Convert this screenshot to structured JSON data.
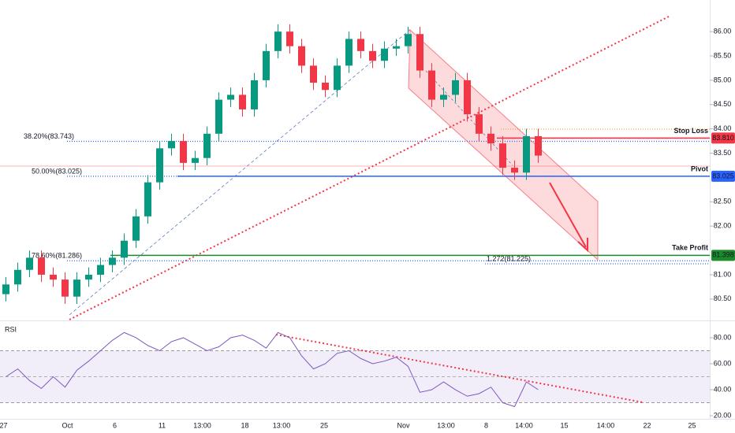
{
  "chart_data": [
    {
      "type": "candlestick",
      "x": [
        0,
        1,
        2,
        3,
        4,
        5,
        6,
        7,
        8,
        9,
        10,
        11,
        12,
        13,
        14,
        15,
        16,
        17,
        18,
        19,
        20,
        21,
        22,
        23,
        24,
        25,
        26,
        27,
        28,
        29,
        30,
        31,
        32,
        33,
        34,
        35,
        36,
        37,
        38,
        39,
        40,
        41,
        42,
        43,
        44,
        45
      ],
      "open": [
        80.6,
        80.8,
        81.1,
        81.35,
        81.0,
        80.9,
        80.55,
        80.9,
        81.0,
        81.2,
        81.35,
        81.7,
        82.2,
        82.9,
        83.6,
        83.75,
        83.3,
        83.4,
        83.9,
        84.6,
        84.7,
        84.4,
        85.0,
        85.6,
        86.0,
        85.7,
        85.3,
        84.95,
        84.8,
        85.3,
        85.85,
        85.6,
        85.4,
        85.65,
        85.7,
        85.95,
        85.2,
        84.6,
        84.7,
        85.0,
        84.3,
        83.9,
        83.7,
        83.2,
        83.1,
        83.85
      ],
      "high": [
        80.95,
        81.25,
        81.5,
        81.5,
        81.15,
        81.05,
        81.05,
        81.15,
        81.35,
        81.5,
        81.85,
        82.35,
        83.05,
        83.75,
        83.9,
        83.9,
        83.55,
        84.05,
        84.75,
        84.85,
        84.85,
        85.15,
        85.75,
        86.15,
        86.15,
        85.85,
        85.45,
        85.1,
        85.45,
        86.0,
        86.0,
        85.75,
        85.8,
        85.85,
        86.1,
        86.1,
        85.35,
        84.85,
        85.15,
        85.15,
        84.45,
        84.05,
        83.85,
        83.35,
        84.0,
        84.0
      ],
      "low": [
        80.45,
        80.65,
        80.95,
        80.85,
        80.75,
        80.4,
        80.4,
        80.75,
        80.85,
        81.05,
        81.2,
        81.55,
        82.05,
        82.75,
        83.45,
        83.15,
        83.15,
        83.25,
        83.75,
        84.45,
        84.25,
        84.25,
        84.85,
        85.45,
        85.55,
        85.15,
        84.8,
        84.65,
        84.65,
        85.15,
        85.45,
        85.25,
        85.25,
        85.5,
        85.55,
        85.05,
        84.45,
        84.45,
        84.55,
        84.15,
        83.75,
        83.55,
        83.05,
        82.95,
        82.95,
        83.3
      ],
      "close": [
        80.8,
        81.1,
        81.35,
        81.0,
        80.9,
        80.55,
        80.9,
        81.0,
        81.2,
        81.35,
        81.7,
        82.2,
        82.9,
        83.6,
        83.75,
        83.3,
        83.4,
        83.9,
        84.6,
        84.7,
        84.4,
        85.0,
        85.6,
        86.0,
        85.7,
        85.3,
        84.95,
        84.8,
        85.3,
        85.85,
        85.6,
        85.4,
        85.65,
        85.7,
        85.95,
        85.2,
        84.6,
        84.7,
        85.0,
        84.3,
        83.9,
        83.7,
        83.2,
        83.1,
        83.85,
        83.45
      ],
      "up_color": "#089981",
      "down_color": "#f23645",
      "xlim": [
        -0.5,
        59.5
      ],
      "xticks": [
        {
          "value": -0.2,
          "label": "27"
        },
        {
          "value": 5.2,
          "label": "Oct"
        },
        {
          "value": 9.2,
          "label": "6"
        },
        {
          "value": 13.2,
          "label": "11"
        },
        {
          "value": 16.6,
          "label": "13:00"
        },
        {
          "value": 20.2,
          "label": "18"
        },
        {
          "value": 23.3,
          "label": "13:00"
        },
        {
          "value": 26.9,
          "label": "25"
        },
        {
          "value": 33.6,
          "label": "Nov"
        },
        {
          "value": 37.2,
          "label": "13:00"
        },
        {
          "value": 40.6,
          "label": "8"
        },
        {
          "value": 43.8,
          "label": "14:00"
        },
        {
          "value": 47.2,
          "label": "15"
        },
        {
          "value": 50.7,
          "label": "14:00"
        },
        {
          "value": 54.2,
          "label": "22"
        },
        {
          "value": 58.0,
          "label": "25"
        }
      ],
      "ylim": [
        80.06,
        86.65
      ],
      "yticks": [
        {
          "value": 86,
          "label": "86.00"
        },
        {
          "value": 85.5,
          "label": "85.50"
        },
        {
          "value": 85,
          "label": "85.00"
        },
        {
          "value": 84.5,
          "label": "84.50"
        },
        {
          "value": 84,
          "label": "84.00"
        },
        {
          "value": 83.5,
          "label": "83.50"
        },
        {
          "value": 82.5,
          "label": "82.50"
        },
        {
          "value": 82,
          "label": "82.00"
        },
        {
          "value": 81,
          "label": "81.00"
        },
        {
          "value": 80.5,
          "label": "80.50"
        }
      ],
      "levels": [
        {
          "label": "38.20%(83.743)",
          "value": 83.743,
          "color": "#2962ff",
          "style": "dotted"
        },
        {
          "label": "50.00%(83.025)",
          "value": 83.025,
          "color": "#2962ff",
          "style": "dotted"
        },
        {
          "label": "78.60%(81.286)",
          "value": 81.286,
          "color": "#2962ff",
          "style": "dotted"
        },
        {
          "label": "1.272(81.225)",
          "value": 81.225,
          "color": "#2962ff",
          "style": "dotted"
        },
        {
          "label": "Stop Loss",
          "value": 83.81,
          "price_label": "83.810",
          "color": "#f23645",
          "style": "solid"
        },
        {
          "label": "Pivot",
          "value": 83.025,
          "price_label": "83.025",
          "color": "#2962ff",
          "text_color": "#90bff9",
          "style": "solid"
        },
        {
          "label": "Take Profit",
          "value": 81.398,
          "price_label": "81.398",
          "color": "#1b8a2a",
          "style": "solid"
        }
      ]
    },
    {
      "type": "line",
      "series": [
        {
          "name": "RSI",
          "color": "#7e57c2",
          "values": [
            50,
            56,
            47,
            41,
            50,
            42,
            55,
            62,
            70,
            78,
            84,
            80,
            74,
            70,
            77,
            80,
            75,
            70,
            73,
            80,
            82,
            78,
            72,
            84,
            80,
            66,
            56,
            60,
            68,
            70,
            64,
            60,
            62,
            65,
            58,
            38,
            40,
            46,
            40,
            35,
            37,
            42,
            30,
            27,
            46,
            40
          ]
        }
      ],
      "ylim": [
        17.6,
        92.7
      ],
      "yticks": [
        {
          "value": 80,
          "label": "80.00"
        },
        {
          "value": 60,
          "label": "60.00"
        },
        {
          "value": 40,
          "label": "40.00"
        },
        {
          "value": 20,
          "label": "20.00"
        }
      ]
    }
  ]
}
